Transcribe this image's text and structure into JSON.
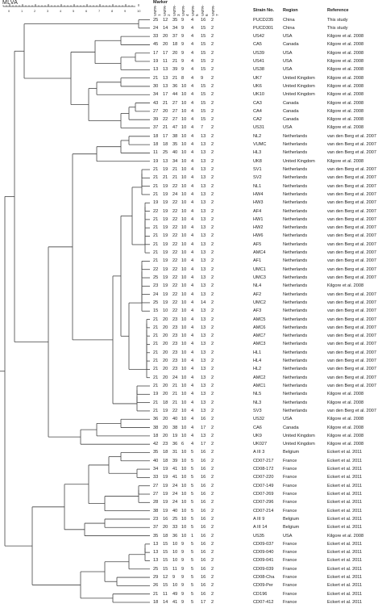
{
  "title": "MLVA",
  "marker_header": "Marker",
  "marker_columns": [
    "VNTR-1",
    "VNTR-2",
    "VNTR-3",
    "VNTR-4",
    "VNTR-5",
    "VNTR-6",
    "VNTR-7"
  ],
  "axis_ticks": [
    "0",
    "1",
    "2",
    "3",
    "4",
    "5",
    "6",
    "7",
    "8",
    "9",
    "10"
  ],
  "columns": {
    "strain": "Strain No.",
    "region": "Region",
    "reference": "Reference"
  },
  "rows": [
    {
      "m": [
        "25",
        "12",
        "35",
        "9",
        "4",
        "16",
        "2"
      ],
      "strain": "PUCD235",
      "region": "China",
      "ref": "This study"
    },
    {
      "m": [
        "24",
        "14",
        "34",
        "9",
        "4",
        "15",
        "2"
      ],
      "strain": "PUCD301",
      "region": "China",
      "ref": "This study"
    },
    {
      "m": [
        "33",
        "20",
        "37",
        "9",
        "4",
        "15",
        "2"
      ],
      "strain": "US42",
      "region": "USA",
      "ref": "Kilgore et al. 2008"
    },
    {
      "m": [
        "45",
        "20",
        "18",
        "9",
        "4",
        "15",
        "2"
      ],
      "strain": "CA5",
      "region": "Canada",
      "ref": "Kilgore et al. 2008"
    },
    {
      "m": [
        "17",
        "17",
        "20",
        "9",
        "4",
        "15",
        "2"
      ],
      "strain": "US39",
      "region": "USA",
      "ref": "Kilgore et al. 2008"
    },
    {
      "m": [
        "19",
        "11",
        "21",
        "9",
        "4",
        "15",
        "2"
      ],
      "strain": "US41",
      "region": "USA",
      "ref": "Kilgore et al. 2008"
    },
    {
      "m": [
        "13",
        "13",
        "39",
        "9",
        "4",
        "15",
        "2"
      ],
      "strain": "US38",
      "region": "USA",
      "ref": "Kilgore et al. 2008"
    },
    {
      "m": [
        "21",
        "13",
        "21",
        "8",
        "4",
        "9",
        "2"
      ],
      "strain": "UK7",
      "region": "United Kingdom",
      "ref": "Kilgore et al. 2008"
    },
    {
      "m": [
        "30",
        "13",
        "36",
        "10",
        "4",
        "15",
        "2"
      ],
      "strain": "UK6",
      "region": "United Kingdom",
      "ref": "Kilgore et al. 2008"
    },
    {
      "m": [
        "34",
        "17",
        "44",
        "10",
        "4",
        "15",
        "2"
      ],
      "strain": "UK10",
      "region": "United Kingdom",
      "ref": "Kilgore et al. 2008"
    },
    {
      "m": [
        "43",
        "21",
        "27",
        "10",
        "4",
        "15",
        "2"
      ],
      "strain": "CA3",
      "region": "Canada",
      "ref": "Kilgore et al. 2008"
    },
    {
      "m": [
        "27",
        "20",
        "27",
        "10",
        "4",
        "15",
        "2"
      ],
      "strain": "CA4",
      "region": "Canada",
      "ref": "Kilgore et al. 2008"
    },
    {
      "m": [
        "39",
        "22",
        "27",
        "10",
        "4",
        "15",
        "2"
      ],
      "strain": "CA2",
      "region": "Canada",
      "ref": "Kilgore et al. 2008"
    },
    {
      "m": [
        "37",
        "21",
        "47",
        "10",
        "4",
        "7",
        "2"
      ],
      "strain": "US31",
      "region": "USA",
      "ref": "Kilgore et al. 2008"
    },
    {
      "m": [
        "18",
        "17",
        "38",
        "10",
        "4",
        "13",
        "2"
      ],
      "strain": "NL2",
      "region": "Netherlands",
      "ref": "van den Berg et al. 2007"
    },
    {
      "m": [
        "18",
        "18",
        "35",
        "10",
        "4",
        "13",
        "2"
      ],
      "strain": "VUMC",
      "region": "Netherlands",
      "ref": "van den Berg et al. 2007"
    },
    {
      "m": [
        "11",
        "25",
        "40",
        "10",
        "4",
        "13",
        "2"
      ],
      "strain": "HL3",
      "region": "Netherlands",
      "ref": "van den Berg et al. 2007"
    },
    {
      "m": [
        "19",
        "13",
        "34",
        "10",
        "4",
        "13",
        "2"
      ],
      "strain": "UK8",
      "region": "United Kingdom",
      "ref": "Kilgore et al. 2008"
    },
    {
      "m": [
        "21",
        "19",
        "21",
        "10",
        "4",
        "13",
        "2"
      ],
      "strain": "SV1",
      "region": "Netherlands",
      "ref": "van den Berg et al. 2007"
    },
    {
      "m": [
        "21",
        "21",
        "21",
        "10",
        "4",
        "13",
        "2"
      ],
      "strain": "SV2",
      "region": "Netherlands",
      "ref": "van den Berg et al. 2007"
    },
    {
      "m": [
        "21",
        "19",
        "22",
        "10",
        "4",
        "13",
        "2"
      ],
      "strain": "NL1",
      "region": "Netherlands",
      "ref": "van den Berg et al. 2007"
    },
    {
      "m": [
        "21",
        "19",
        "24",
        "10",
        "4",
        "13",
        "2"
      ],
      "strain": "HW4",
      "region": "Netherlands",
      "ref": "van den Berg et al. 2007"
    },
    {
      "m": [
        "19",
        "19",
        "22",
        "10",
        "4",
        "13",
        "2"
      ],
      "strain": "HW3",
      "region": "Netherlands",
      "ref": "van den Berg et al. 2007"
    },
    {
      "m": [
        "22",
        "19",
        "22",
        "10",
        "4",
        "13",
        "2"
      ],
      "strain": "AF4",
      "region": "Netherlands",
      "ref": "van den Berg et al. 2007"
    },
    {
      "m": [
        "21",
        "19",
        "22",
        "10",
        "4",
        "13",
        "2"
      ],
      "strain": "HW1",
      "region": "Netherlands",
      "ref": "van den Berg et al. 2007"
    },
    {
      "m": [
        "21",
        "19",
        "22",
        "10",
        "4",
        "13",
        "2"
      ],
      "strain": "HW2",
      "region": "Netherlands",
      "ref": "van den Berg et al. 2007"
    },
    {
      "m": [
        "21",
        "19",
        "22",
        "10",
        "4",
        "13",
        "2"
      ],
      "strain": "HW6",
      "region": "Netherlands",
      "ref": "van den Berg et al. 2007"
    },
    {
      "m": [
        "21",
        "19",
        "22",
        "10",
        "4",
        "13",
        "2"
      ],
      "strain": "AF5",
      "region": "Netherlands",
      "ref": "van den Berg et al. 2007"
    },
    {
      "m": [
        "21",
        "19",
        "22",
        "10",
        "4",
        "13",
        "2"
      ],
      "strain": "AMC4",
      "region": "Netherlands",
      "ref": "van den Berg et al. 2007"
    },
    {
      "m": [
        "21",
        "19",
        "22",
        "10",
        "4",
        "13",
        "2"
      ],
      "strain": "AF1",
      "region": "Netherlands",
      "ref": "van den Berg et al. 2007"
    },
    {
      "m": [
        "22",
        "19",
        "22",
        "10",
        "4",
        "13",
        "2"
      ],
      "strain": "UMC1",
      "region": "Netherlands",
      "ref": "van den Berg et al. 2007"
    },
    {
      "m": [
        "25",
        "19",
        "22",
        "10",
        "4",
        "13",
        "2"
      ],
      "strain": "UMC3",
      "region": "Netherlands",
      "ref": "van den Berg et al. 2007"
    },
    {
      "m": [
        "23",
        "19",
        "22",
        "10",
        "4",
        "13",
        "2"
      ],
      "strain": "NL4",
      "region": "Netherlands",
      "ref": "Kilgore et al. 2008"
    },
    {
      "m": [
        "24",
        "19",
        "22",
        "10",
        "4",
        "13",
        "2"
      ],
      "strain": "AF2",
      "region": "Netherlands",
      "ref": "van den Berg et al. 2007"
    },
    {
      "m": [
        "25",
        "19",
        "22",
        "10",
        "4",
        "14",
        "2"
      ],
      "strain": "UMC2",
      "region": "Netherlands",
      "ref": "van den Berg et al. 2007"
    },
    {
      "m": [
        "15",
        "10",
        "22",
        "10",
        "4",
        "13",
        "2"
      ],
      "strain": "AF3",
      "region": "Netherlands",
      "ref": "van den Berg et al. 2007"
    },
    {
      "m": [
        "21",
        "20",
        "23",
        "10",
        "4",
        "13",
        "2"
      ],
      "strain": "AMC5",
      "region": "Netherlands",
      "ref": "van den Berg et al. 2007"
    },
    {
      "m": [
        "21",
        "20",
        "23",
        "10",
        "4",
        "13",
        "2"
      ],
      "strain": "AMC6",
      "region": "Netherlands",
      "ref": "van den Berg et al. 2007"
    },
    {
      "m": [
        "21",
        "20",
        "23",
        "10",
        "4",
        "13",
        "2"
      ],
      "strain": "AMC7",
      "region": "Netherlands",
      "ref": "van den Berg et al. 2007"
    },
    {
      "m": [
        "21",
        "20",
        "23",
        "10",
        "4",
        "13",
        "2"
      ],
      "strain": "AMC3",
      "region": "Netherlands",
      "ref": "van den Berg et al. 2007"
    },
    {
      "m": [
        "21",
        "20",
        "23",
        "10",
        "4",
        "13",
        "2"
      ],
      "strain": "HL1",
      "region": "Netherlands",
      "ref": "van den Berg et al. 2007"
    },
    {
      "m": [
        "21",
        "20",
        "23",
        "10",
        "4",
        "13",
        "2"
      ],
      "strain": "HL4",
      "region": "Netherlands",
      "ref": "van den Berg et al. 2007"
    },
    {
      "m": [
        "21",
        "20",
        "23",
        "10",
        "4",
        "13",
        "2"
      ],
      "strain": "HL2",
      "region": "Netherlands",
      "ref": "van den Berg et al. 2007"
    },
    {
      "m": [
        "21",
        "20",
        "24",
        "10",
        "4",
        "13",
        "2"
      ],
      "strain": "AMC2",
      "region": "Netherlands",
      "ref": "van den Berg et al. 2007"
    },
    {
      "m": [
        "21",
        "20",
        "21",
        "10",
        "4",
        "13",
        "2"
      ],
      "strain": "AMC1",
      "region": "Netherlands",
      "ref": "van den Berg et al. 2007"
    },
    {
      "m": [
        "19",
        "20",
        "21",
        "10",
        "4",
        "13",
        "2"
      ],
      "strain": "NL5",
      "region": "Netherlands",
      "ref": "Kilgore et al. 2008"
    },
    {
      "m": [
        "21",
        "18",
        "21",
        "10",
        "4",
        "13",
        "2"
      ],
      "strain": "NL3",
      "region": "Netherlands",
      "ref": "Kilgore et al. 2008"
    },
    {
      "m": [
        "21",
        "19",
        "22",
        "10",
        "4",
        "13",
        "2"
      ],
      "strain": "SV3",
      "region": "Netherlands",
      "ref": "van den Berg et al. 2007"
    },
    {
      "m": [
        "36",
        "20",
        "40",
        "10",
        "4",
        "16",
        "2"
      ],
      "strain": "US32",
      "region": "USA",
      "ref": "Kilgore et al. 2008"
    },
    {
      "m": [
        "38",
        "20",
        "38",
        "10",
        "4",
        "17",
        "2"
      ],
      "strain": "CA6",
      "region": "Canada",
      "ref": "Kilgore et al. 2008"
    },
    {
      "m": [
        "18",
        "20",
        "19",
        "10",
        "4",
        "13",
        "2"
      ],
      "strain": "UK9",
      "region": "United Kingdom",
      "ref": "Kilgore et al. 2008"
    },
    {
      "m": [
        "42",
        "23",
        "36",
        "6",
        "4",
        "17",
        "2"
      ],
      "strain": "UK027",
      "region": "United Kingdom",
      "ref": "Kilgore et al. 2008"
    },
    {
      "m": [
        "35",
        "18",
        "31",
        "10",
        "5",
        "16",
        "2"
      ],
      "strain": "A III 3",
      "region": "Belgium",
      "ref": "Eckert et al. 2011"
    },
    {
      "m": [
        "40",
        "18",
        "39",
        "10",
        "5",
        "16",
        "2"
      ],
      "strain": "CD07-217",
      "region": "France",
      "ref": "Eckert et al. 2011"
    },
    {
      "m": [
        "34",
        "19",
        "41",
        "10",
        "5",
        "16",
        "2"
      ],
      "strain": "CD08-172",
      "region": "France",
      "ref": "Eckert et al. 2011"
    },
    {
      "m": [
        "33",
        "19",
        "41",
        "10",
        "5",
        "16",
        "2"
      ],
      "strain": "CD07-220",
      "region": "France",
      "ref": "Eckert et al. 2011"
    },
    {
      "m": [
        "27",
        "19",
        "24",
        "10",
        "5",
        "16",
        "2"
      ],
      "strain": "CD07-149",
      "region": "France",
      "ref": "Eckert et al. 2011"
    },
    {
      "m": [
        "27",
        "19",
        "24",
        "10",
        "5",
        "16",
        "2"
      ],
      "strain": "CD07-269",
      "region": "France",
      "ref": "Eckert et al. 2011"
    },
    {
      "m": [
        "28",
        "19",
        "24",
        "10",
        "5",
        "16",
        "2"
      ],
      "strain": "CD07-296",
      "region": "France",
      "ref": "Eckert et al. 2011"
    },
    {
      "m": [
        "38",
        "19",
        "40",
        "10",
        "5",
        "16",
        "2"
      ],
      "strain": "CD07-214",
      "region": "France",
      "ref": "Eckert et al. 2011"
    },
    {
      "m": [
        "23",
        "16",
        "25",
        "10",
        "5",
        "16",
        "2"
      ],
      "strain": "A III 9",
      "region": "Belgium",
      "ref": "Eckert et al. 2011"
    },
    {
      "m": [
        "37",
        "20",
        "33",
        "10",
        "5",
        "16",
        "2"
      ],
      "strain": "A III 14",
      "region": "Belgium",
      "ref": "Eckert et al. 2011"
    },
    {
      "m": [
        "35",
        "18",
        "36",
        "10",
        "1",
        "16",
        "2"
      ],
      "strain": "US35",
      "region": "USA",
      "ref": "Kilgore et al. 2008"
    },
    {
      "m": [
        "13",
        "15",
        "10",
        "9",
        "5",
        "16",
        "2"
      ],
      "strain": "CD09-037",
      "region": "France",
      "ref": "Eckert et al. 2011"
    },
    {
      "m": [
        "13",
        "15",
        "10",
        "9",
        "5",
        "16",
        "2"
      ],
      "strain": "CD09-040",
      "region": "France",
      "ref": "Eckert et al. 2011"
    },
    {
      "m": [
        "13",
        "15",
        "10",
        "9",
        "5",
        "16",
        "2"
      ],
      "strain": "CD09-041",
      "region": "France",
      "ref": "Eckert et al. 2011"
    },
    {
      "m": [
        "25",
        "15",
        "11",
        "9",
        "5",
        "16",
        "2"
      ],
      "strain": "CD09-039",
      "region": "France",
      "ref": "Eckert et al. 2011"
    },
    {
      "m": [
        "29",
        "12",
        "9",
        "9",
        "5",
        "16",
        "2"
      ],
      "strain": "CD08-Cha",
      "region": "France",
      "ref": "Eckert et al. 2011"
    },
    {
      "m": [
        "26",
        "15",
        "10",
        "9",
        "5",
        "16",
        "2"
      ],
      "strain": "CD09-Per",
      "region": "France",
      "ref": "Eckert et al. 2011"
    },
    {
      "m": [
        "21",
        "11",
        "49",
        "9",
        "5",
        "16",
        "2"
      ],
      "strain": "CD196",
      "region": "France",
      "ref": "Eckert et al. 2011"
    },
    {
      "m": [
        "18",
        "14",
        "41",
        "9",
        "5",
        "17",
        "2"
      ],
      "strain": "CD07-412",
      "region": "France",
      "ref": "Eckert et al. 2011"
    }
  ],
  "colors": {
    "line": "#444444",
    "text": "#222222"
  }
}
